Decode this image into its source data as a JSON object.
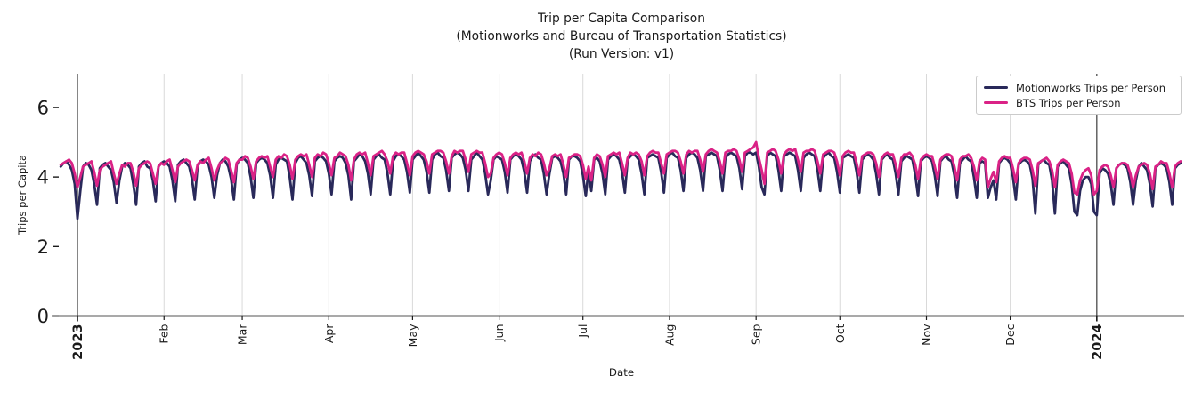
{
  "title": {
    "line1": "Trip per Capita Comparison",
    "line2": "(Motionworks and Bureau of Transportation Statistics)",
    "line3": "(Run Version: v1)"
  },
  "axes": {
    "x_label": "Date",
    "y_label": "Trips per Capita"
  },
  "legend": {
    "position": "upper right",
    "items": [
      {
        "label": "Motionworks Trips per Person",
        "color": "#29295a"
      },
      {
        "label": "BTS Trips per Person",
        "color": "#da2286"
      }
    ]
  },
  "colors": {
    "text": "#1a1a1a",
    "axis": "#1a1a1a",
    "grid_light": "#d9d9d9",
    "grid_dark": "#3b3b3b",
    "background": "#ffffff"
  },
  "chart_data": {
    "type": "line",
    "title": "Trip per Capita Comparison (Motionworks and Bureau of Transportation Statistics) (Run Version: v1)",
    "xlabel": "Date",
    "ylabel": "Trips per Capita",
    "frequency": "daily",
    "start_date": "2022-12-26",
    "end_date": "2024-01-31",
    "grid": "vertical-month-gridlines",
    "legend_position": "upper right",
    "y_ticks": [
      0,
      2,
      4,
      6
    ],
    "y_range": [
      0,
      6.97
    ],
    "x_range_days": [
      -0.7,
      402.3
    ],
    "x_ticks": [
      {
        "label": "2023",
        "day": 6,
        "year": true
      },
      {
        "label": "Feb",
        "day": 37
      },
      {
        "label": "Mar",
        "day": 65
      },
      {
        "label": "Apr",
        "day": 96
      },
      {
        "label": "May",
        "day": 126
      },
      {
        "label": "Jun",
        "day": 157
      },
      {
        "label": "Jul",
        "day": 187
      },
      {
        "label": "Aug",
        "day": 218
      },
      {
        "label": "Sep",
        "day": 249
      },
      {
        "label": "Oct",
        "day": 279
      },
      {
        "label": "Nov",
        "day": 310
      },
      {
        "label": "Dec",
        "day": 340
      },
      {
        "label": "2024",
        "day": 371,
        "year": true
      }
    ],
    "series": [
      {
        "name": "Motionworks Trips per Person",
        "color": "#29295a",
        "values": [
          4.3,
          4.4,
          4.45,
          4.35,
          4.2,
          3.8,
          2.8,
          3.6,
          4.3,
          4.4,
          4.35,
          4.2,
          3.8,
          3.2,
          4.25,
          4.35,
          4.4,
          4.3,
          4.2,
          3.85,
          3.25,
          3.9,
          4.3,
          4.4,
          4.35,
          4.25,
          3.8,
          3.2,
          4.3,
          4.4,
          4.45,
          4.3,
          4.25,
          3.9,
          3.3,
          4.3,
          4.4,
          4.45,
          4.4,
          4.3,
          3.9,
          3.3,
          4.35,
          4.45,
          4.5,
          4.4,
          4.3,
          3.95,
          3.35,
          4.3,
          4.45,
          4.5,
          4.45,
          4.35,
          4.0,
          3.4,
          4.05,
          4.4,
          4.5,
          4.45,
          4.3,
          3.95,
          3.35,
          4.35,
          4.5,
          4.55,
          4.5,
          4.4,
          4.0,
          3.4,
          4.4,
          4.5,
          4.55,
          4.5,
          4.4,
          4.05,
          3.4,
          4.35,
          4.5,
          4.55,
          4.5,
          4.45,
          4.0,
          3.35,
          4.4,
          4.55,
          4.6,
          4.5,
          4.4,
          4.05,
          3.45,
          4.45,
          4.55,
          4.6,
          4.55,
          4.45,
          4.1,
          3.5,
          4.45,
          4.55,
          4.6,
          4.55,
          4.4,
          4.05,
          3.35,
          4.45,
          4.55,
          4.65,
          4.6,
          4.45,
          4.1,
          3.5,
          4.5,
          4.6,
          4.65,
          4.55,
          4.5,
          4.1,
          3.5,
          4.45,
          4.6,
          4.65,
          4.6,
          4.5,
          4.15,
          3.55,
          4.5,
          4.6,
          4.7,
          4.6,
          4.5,
          4.15,
          3.55,
          4.5,
          4.65,
          4.7,
          4.6,
          4.55,
          4.2,
          3.6,
          4.55,
          4.65,
          4.7,
          4.65,
          4.55,
          4.2,
          3.6,
          4.5,
          4.6,
          4.7,
          4.6,
          4.5,
          4.1,
          3.5,
          3.9,
          4.5,
          4.6,
          4.55,
          4.5,
          4.15,
          3.55,
          4.5,
          4.6,
          4.65,
          4.6,
          4.5,
          4.15,
          3.55,
          4.45,
          4.6,
          4.65,
          4.55,
          4.5,
          4.1,
          3.5,
          4.1,
          4.55,
          4.6,
          4.55,
          4.45,
          4.1,
          3.5,
          4.5,
          4.6,
          4.6,
          4.55,
          4.45,
          4.05,
          3.45,
          4.2,
          3.6,
          4.5,
          4.55,
          4.45,
          4.1,
          3.5,
          4.5,
          4.6,
          4.65,
          4.6,
          4.5,
          4.15,
          3.55,
          4.5,
          4.6,
          4.65,
          4.6,
          4.5,
          4.1,
          3.5,
          4.55,
          4.6,
          4.65,
          4.6,
          4.55,
          4.15,
          3.55,
          4.55,
          4.65,
          4.7,
          4.6,
          4.55,
          4.2,
          3.6,
          4.55,
          4.65,
          4.7,
          4.65,
          4.55,
          4.2,
          3.6,
          4.6,
          4.65,
          4.7,
          4.65,
          4.6,
          4.2,
          3.6,
          4.55,
          4.65,
          4.7,
          4.65,
          4.6,
          4.25,
          3.65,
          4.6,
          4.7,
          4.7,
          4.65,
          4.7,
          4.3,
          3.7,
          3.5,
          4.6,
          4.7,
          4.65,
          4.6,
          4.2,
          3.6,
          4.6,
          4.65,
          4.7,
          4.65,
          4.6,
          4.2,
          3.6,
          4.55,
          4.65,
          4.7,
          4.65,
          4.6,
          4.2,
          3.6,
          4.55,
          4.65,
          4.7,
          4.6,
          4.55,
          4.15,
          3.55,
          4.55,
          4.6,
          4.65,
          4.6,
          4.55,
          4.15,
          3.55,
          4.5,
          4.6,
          4.65,
          4.6,
          4.5,
          4.1,
          3.5,
          4.5,
          4.6,
          4.65,
          4.55,
          4.5,
          4.1,
          3.5,
          4.45,
          4.55,
          4.6,
          4.55,
          4.5,
          4.05,
          3.45,
          4.45,
          4.55,
          4.6,
          4.55,
          4.45,
          4.05,
          3.45,
          4.45,
          4.55,
          4.6,
          4.5,
          4.45,
          4.05,
          3.4,
          4.4,
          4.5,
          4.6,
          4.5,
          4.45,
          4.0,
          3.4,
          4.4,
          4.45,
          4.4,
          3.4,
          3.7,
          3.9,
          3.35,
          4.4,
          4.5,
          4.55,
          4.5,
          4.4,
          4.0,
          3.35,
          4.35,
          4.45,
          4.5,
          4.45,
          4.35,
          3.95,
          2.95,
          4.35,
          4.45,
          4.5,
          4.4,
          4.35,
          3.9,
          2.95,
          4.3,
          4.4,
          4.45,
          4.35,
          4.25,
          3.8,
          3.0,
          2.9,
          3.6,
          3.9,
          4.0,
          4.0,
          3.8,
          3.0,
          2.9,
          4.1,
          4.25,
          4.2,
          4.1,
          3.8,
          3.2,
          4.25,
          4.35,
          4.4,
          4.35,
          4.25,
          3.85,
          3.2,
          3.9,
          4.3,
          4.4,
          4.3,
          4.2,
          3.8,
          3.15,
          4.25,
          4.35,
          4.4,
          4.35,
          4.25,
          3.85,
          3.2,
          4.25,
          4.35,
          4.4
        ]
      },
      {
        "name": "BTS Trips per Person",
        "color": "#da2286",
        "values": [
          4.35,
          4.4,
          4.45,
          4.5,
          4.4,
          4.1,
          3.7,
          4.0,
          4.3,
          4.35,
          4.4,
          4.45,
          4.15,
          3.75,
          4.2,
          4.3,
          4.35,
          4.4,
          4.45,
          4.1,
          3.8,
          4.1,
          4.35,
          4.3,
          4.4,
          4.4,
          4.15,
          3.75,
          4.25,
          4.35,
          4.4,
          4.45,
          4.4,
          4.1,
          3.8,
          4.3,
          4.4,
          4.35,
          4.45,
          4.5,
          4.2,
          3.85,
          4.3,
          4.4,
          4.45,
          4.5,
          4.45,
          4.2,
          3.9,
          4.35,
          4.45,
          4.4,
          4.5,
          4.55,
          4.25,
          3.9,
          4.2,
          4.4,
          4.45,
          4.55,
          4.5,
          4.2,
          3.85,
          4.4,
          4.5,
          4.5,
          4.6,
          4.55,
          4.3,
          3.95,
          4.45,
          4.55,
          4.6,
          4.55,
          4.6,
          4.3,
          4.0,
          4.5,
          4.6,
          4.55,
          4.65,
          4.6,
          4.35,
          3.95,
          4.5,
          4.6,
          4.65,
          4.6,
          4.65,
          4.35,
          4.0,
          4.55,
          4.65,
          4.6,
          4.7,
          4.65,
          4.4,
          4.05,
          4.55,
          4.6,
          4.7,
          4.65,
          4.6,
          4.35,
          3.9,
          4.5,
          4.65,
          4.7,
          4.65,
          4.7,
          4.4,
          4.05,
          4.6,
          4.65,
          4.7,
          4.75,
          4.65,
          4.45,
          4.1,
          4.6,
          4.7,
          4.65,
          4.7,
          4.7,
          4.4,
          4.05,
          4.6,
          4.7,
          4.75,
          4.7,
          4.65,
          4.45,
          4.1,
          4.65,
          4.7,
          4.75,
          4.75,
          4.7,
          4.45,
          4.1,
          4.6,
          4.75,
          4.7,
          4.75,
          4.75,
          4.5,
          4.15,
          4.65,
          4.7,
          4.75,
          4.7,
          4.7,
          4.4,
          4.0,
          4.1,
          4.55,
          4.65,
          4.7,
          4.65,
          4.4,
          4.05,
          4.55,
          4.65,
          4.7,
          4.65,
          4.7,
          4.45,
          4.1,
          4.55,
          4.65,
          4.6,
          4.7,
          4.65,
          4.4,
          4.05,
          4.25,
          4.6,
          4.65,
          4.6,
          4.65,
          4.35,
          4.0,
          4.55,
          4.6,
          4.65,
          4.65,
          4.6,
          4.35,
          3.95,
          4.3,
          3.9,
          4.55,
          4.65,
          4.6,
          4.35,
          4.0,
          4.6,
          4.65,
          4.7,
          4.65,
          4.7,
          4.4,
          4.05,
          4.55,
          4.7,
          4.65,
          4.7,
          4.65,
          4.45,
          4.05,
          4.6,
          4.7,
          4.75,
          4.7,
          4.7,
          4.4,
          4.1,
          4.65,
          4.7,
          4.75,
          4.75,
          4.7,
          4.45,
          4.1,
          4.65,
          4.75,
          4.7,
          4.75,
          4.75,
          4.5,
          4.15,
          4.65,
          4.75,
          4.8,
          4.75,
          4.7,
          4.45,
          4.1,
          4.7,
          4.75,
          4.75,
          4.8,
          4.75,
          4.5,
          4.15,
          4.7,
          4.75,
          4.8,
          4.85,
          5.0,
          4.55,
          4.2,
          3.8,
          4.7,
          4.75,
          4.8,
          4.75,
          4.5,
          4.1,
          4.65,
          4.75,
          4.8,
          4.75,
          4.8,
          4.5,
          4.15,
          4.7,
          4.75,
          4.75,
          4.8,
          4.75,
          4.45,
          4.1,
          4.65,
          4.7,
          4.75,
          4.75,
          4.7,
          4.45,
          4.05,
          4.6,
          4.7,
          4.75,
          4.7,
          4.7,
          4.4,
          4.05,
          4.6,
          4.65,
          4.7,
          4.7,
          4.65,
          4.4,
          4.0,
          4.55,
          4.65,
          4.7,
          4.65,
          4.65,
          4.35,
          4.0,
          4.55,
          4.65,
          4.65,
          4.7,
          4.6,
          4.35,
          3.95,
          4.5,
          4.6,
          4.65,
          4.6,
          4.6,
          4.3,
          3.95,
          4.5,
          4.6,
          4.65,
          4.65,
          4.6,
          4.3,
          3.9,
          4.5,
          4.6,
          4.6,
          4.65,
          4.55,
          4.3,
          3.9,
          4.45,
          4.55,
          4.5,
          3.7,
          3.95,
          4.15,
          3.85,
          4.45,
          4.55,
          4.6,
          4.55,
          4.55,
          4.25,
          3.85,
          4.4,
          4.5,
          4.55,
          4.55,
          4.5,
          4.2,
          3.75,
          4.4,
          4.45,
          4.5,
          4.55,
          4.45,
          4.2,
          3.7,
          4.35,
          4.45,
          4.5,
          4.45,
          4.4,
          4.1,
          3.55,
          3.5,
          3.9,
          4.1,
          4.2,
          4.25,
          4.05,
          3.5,
          3.6,
          4.2,
          4.3,
          4.35,
          4.3,
          4.05,
          3.7,
          4.25,
          4.35,
          4.4,
          4.4,
          4.35,
          4.1,
          3.7,
          4.05,
          4.3,
          4.35,
          4.4,
          4.35,
          4.1,
          3.65,
          4.3,
          4.35,
          4.45,
          4.4,
          4.4,
          4.1,
          3.7,
          4.3,
          4.4,
          4.45
        ]
      }
    ]
  }
}
